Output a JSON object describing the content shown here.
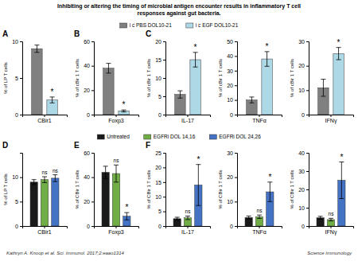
{
  "title": "Inhibiting or altering the timing of microbial antigen encounter results in inflammatory T cell\nresponses against gut bacteria.",
  "annotations": [
    "Kathryn A. Knoop et al. Sci. Immunol. 2017;2:eaao1314",
    "Science Immunology"
  ],
  "chart_data": [
    {
      "type": "bar",
      "title": "A",
      "y_label": "% of LP T cells",
      "categories": [
        "CBir1"
      ],
      "legend": "top",
      "ylim": [
        0,
        10
      ],
      "yticks": [
        0,
        5,
        10
      ],
      "series": [
        {
          "name": "i c PBS DOL10-21",
          "color": "#808080",
          "values": [
            9.0
          ],
          "errors": [
            0.5
          ]
        },
        {
          "name": "i c EGF DOL10-21",
          "color": "#add8e6",
          "values": [
            2.0
          ],
          "errors": [
            0.4
          ]
        }
      ],
      "annotations": [
        {
          "text": "*",
          "series": 1
        }
      ]
    },
    {
      "type": "bar",
      "title": "B",
      "y_label": "% of cBir 1 T cells",
      "categories": [
        "Foxp3"
      ],
      "ylim": [
        0,
        60
      ],
      "yticks": [
        0,
        20,
        40,
        60
      ],
      "series": [
        {
          "name": "i c PBS DOL10-21",
          "color": "#808080",
          "values": [
            38.0
          ],
          "errors": [
            4.0
          ]
        },
        {
          "name": "i c EGF DOL10-21",
          "color": "#add8e6",
          "values": [
            3.0
          ],
          "errors": [
            0.8
          ]
        }
      ],
      "annotations": [
        {
          "text": "*",
          "series": 1
        }
      ]
    },
    {
      "type": "bar",
      "title": "C",
      "y_label": "% of cBir 1 T cells",
      "categories": [
        "IL-17"
      ],
      "ylim": [
        0,
        20
      ],
      "yticks": [
        0,
        5,
        10,
        15,
        20
      ],
      "series": [
        {
          "name": "i c PBS DOL10-21",
          "color": "#808080",
          "values": [
            5.5
          ],
          "errors": [
            1.0
          ]
        },
        {
          "name": "i c EGF DOL10-21",
          "color": "#add8e6",
          "values": [
            15.0
          ],
          "errors": [
            2.0
          ]
        }
      ],
      "annotations": [
        {
          "text": "*",
          "series": 1
        }
      ]
    },
    {
      "type": "bar",
      "y_label": "% of cBir 1 T cells",
      "categories": [
        "TNFα"
      ],
      "ylim": [
        0,
        50
      ],
      "yticks": [
        0,
        10,
        20,
        30,
        40,
        50
      ],
      "series": [
        {
          "name": "i c PBS DOL10-21",
          "color": "#808080",
          "values": [
            10.0
          ],
          "errors": [
            2.0
          ]
        },
        {
          "name": "i c EGF DOL10-21",
          "color": "#add8e6",
          "values": [
            38.0
          ],
          "errors": [
            5.0
          ]
        }
      ],
      "annotations": [
        {
          "text": "*",
          "series": 1
        }
      ]
    },
    {
      "type": "bar",
      "y_label": "% of cBir 1 T cells",
      "categories": [
        "IFNγ"
      ],
      "ylim": [
        0,
        30
      ],
      "yticks": [
        0,
        10,
        20,
        30
      ],
      "series": [
        {
          "name": "i c PBS DOL10-21",
          "color": "#808080",
          "values": [
            11.0
          ],
          "errors": [
            3.5
          ]
        },
        {
          "name": "i c EGF DOL10-21",
          "color": "#add8e6",
          "values": [
            25.0
          ],
          "errors": [
            2.5
          ]
        }
      ],
      "annotations": [
        {
          "text": "*",
          "series": 1
        }
      ]
    },
    {
      "type": "bar",
      "title": "D",
      "y_label": "% of LP T cells",
      "categories": [
        "CBir1"
      ],
      "legend": "top",
      "ylim": [
        0,
        15
      ],
      "yticks": [
        0,
        5,
        10
      ],
      "series": [
        {
          "name": "Untreated",
          "color": "#1a1a1a",
          "values": [
            9.0
          ],
          "errors": [
            0.5
          ]
        },
        {
          "name": "EGFRi DOL 14,16",
          "color": "#70ad47",
          "values": [
            9.5
          ],
          "errors": [
            0.6
          ]
        },
        {
          "name": "EGFRi DOL 24,26",
          "color": "#4472c4",
          "values": [
            9.8
          ],
          "errors": [
            0.7
          ]
        }
      ],
      "annotations": [
        {
          "text": "ns",
          "series": 1
        },
        {
          "text": "ns",
          "series": 2
        }
      ]
    },
    {
      "type": "bar",
      "title": "E",
      "y_label": "% of CBir 1 T cells",
      "categories": [
        "Foxp3"
      ],
      "ylim": [
        0,
        60
      ],
      "yticks": [
        0,
        20,
        40,
        60
      ],
      "series": [
        {
          "name": "Untreated",
          "color": "#1a1a1a",
          "values": [
            44.0
          ],
          "errors": [
            5.0
          ]
        },
        {
          "name": "EGFRi DOL 14,16",
          "color": "#70ad47",
          "values": [
            43.0
          ],
          "errors": [
            7.0
          ]
        },
        {
          "name": "EGFRi DOL 24,26",
          "color": "#4472c4",
          "values": [
            8.0
          ],
          "errors": [
            3.0
          ]
        }
      ],
      "annotations": [
        {
          "text": "ns",
          "series": 1
        },
        {
          "text": "*",
          "series": 2
        }
      ]
    },
    {
      "type": "bar",
      "title": "F",
      "y_label": "% of CBir 1 T cells",
      "categories": [
        "IL-17"
      ],
      "ylim": [
        0,
        25
      ],
      "yticks": [
        0,
        5,
        10,
        15,
        20,
        25
      ],
      "series": [
        {
          "name": "Untreated",
          "color": "#1a1a1a",
          "values": [
            2.5
          ],
          "errors": [
            0.5
          ]
        },
        {
          "name": "EGFRi DOL 14,16",
          "color": "#70ad47",
          "values": [
            2.8
          ],
          "errors": [
            0.6
          ]
        },
        {
          "name": "EGFRi DOL 24,26",
          "color": "#4472c4",
          "values": [
            14.0
          ],
          "errors": [
            7.0
          ]
        }
      ],
      "annotations": [
        {
          "text": "ns",
          "series": 1
        },
        {
          "text": "*",
          "series": 2
        }
      ]
    },
    {
      "type": "bar",
      "y_label": "% of CBir 1 T cells",
      "categories": [
        "TNFα"
      ],
      "ylim": [
        0,
        30
      ],
      "yticks": [
        0,
        10,
        20,
        30
      ],
      "series": [
        {
          "name": "Untreated",
          "color": "#1a1a1a",
          "values": [
            3.5
          ],
          "errors": [
            0.6
          ]
        },
        {
          "name": "EGFRi DOL 14,16",
          "color": "#70ad47",
          "values": [
            3.8
          ],
          "errors": [
            0.7
          ]
        },
        {
          "name": "EGFRi DOL 24,26",
          "color": "#4472c4",
          "values": [
            14.0
          ],
          "errors": [
            4.0
          ]
        }
      ],
      "annotations": [
        {
          "text": "ns",
          "series": 1
        },
        {
          "text": "*",
          "series": 2
        }
      ]
    },
    {
      "type": "bar",
      "y_label": "% of CBir 1 T cells",
      "categories": [
        "IFNγ"
      ],
      "ylim": [
        0,
        40
      ],
      "yticks": [
        0,
        10,
        20,
        30,
        40
      ],
      "series": [
        {
          "name": "Untreated",
          "color": "#1a1a1a",
          "values": [
            4.5
          ],
          "errors": [
            0.8
          ]
        },
        {
          "name": "EGFRi DOL 14,16",
          "color": "#70ad47",
          "values": [
            3.5
          ],
          "errors": [
            0.7
          ]
        },
        {
          "name": "EGFRi DOL 24,26",
          "color": "#4472c4",
          "values": [
            25.0
          ],
          "errors": [
            10.0
          ]
        }
      ],
      "annotations": [
        {
          "text": "ns",
          "series": 1
        },
        {
          "text": "*",
          "series": 2
        }
      ]
    }
  ]
}
